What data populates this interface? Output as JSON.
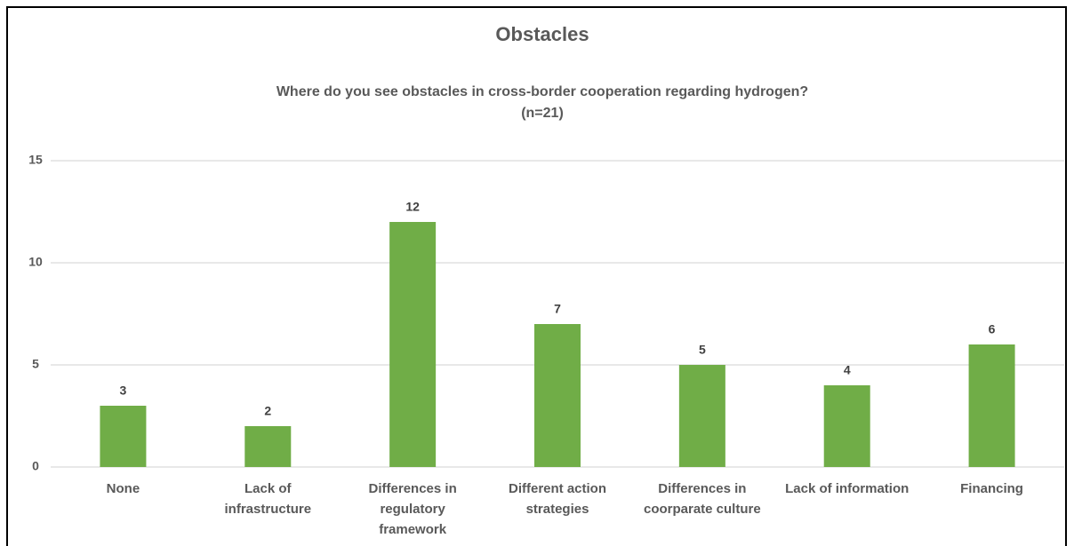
{
  "chart_data": {
    "type": "bar",
    "title": "Obstacles",
    "subtitle": [
      "Where do you see obstacles in cross-border cooperation regarding hydrogen?",
      "(n=21)"
    ],
    "categories": [
      [
        "None"
      ],
      [
        "Lack of",
        "infrastructure"
      ],
      [
        "Differences in",
        "regulatory",
        "framework"
      ],
      [
        "Different action",
        "strategies"
      ],
      [
        "Differences in",
        "coorparate culture"
      ],
      [
        "Lack of information"
      ],
      [
        "Financing"
      ]
    ],
    "values": [
      3,
      2,
      12,
      7,
      5,
      4,
      6
    ],
    "color": "#70ad47",
    "ylim": [
      0,
      15
    ],
    "yticks": [
      0,
      5,
      10,
      15
    ],
    "grid": true
  }
}
